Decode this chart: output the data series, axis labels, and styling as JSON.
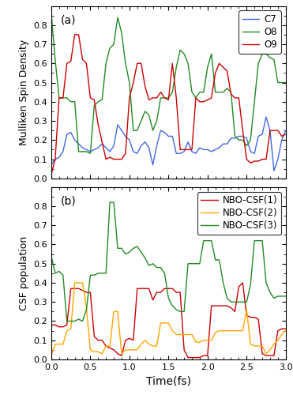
{
  "panel_a": {
    "title": "(a)",
    "ylabel": "Mulliken Spin Density",
    "ylim": [
      0.0,
      0.9
    ],
    "yticks": [
      0.0,
      0.1,
      0.2,
      0.3,
      0.4,
      0.5,
      0.6,
      0.7,
      0.8
    ],
    "C7": {
      "color": "#4169e1",
      "x": [
        0.0,
        0.05,
        0.1,
        0.15,
        0.2,
        0.25,
        0.3,
        0.35,
        0.4,
        0.45,
        0.5,
        0.55,
        0.6,
        0.65,
        0.7,
        0.75,
        0.8,
        0.85,
        0.9,
        0.95,
        1.0,
        1.05,
        1.1,
        1.15,
        1.2,
        1.25,
        1.3,
        1.35,
        1.4,
        1.45,
        1.5,
        1.55,
        1.6,
        1.65,
        1.7,
        1.75,
        1.8,
        1.85,
        1.9,
        1.95,
        2.0,
        2.05,
        2.1,
        2.15,
        2.2,
        2.25,
        2.3,
        2.35,
        2.4,
        2.45,
        2.5,
        2.55,
        2.6,
        2.65,
        2.7,
        2.75,
        2.8,
        2.85,
        2.9,
        2.95,
        3.0
      ],
      "y": [
        0.07,
        0.1,
        0.11,
        0.14,
        0.23,
        0.24,
        0.2,
        0.18,
        0.16,
        0.15,
        0.14,
        0.15,
        0.16,
        0.18,
        0.16,
        0.14,
        0.17,
        0.28,
        0.25,
        0.22,
        0.2,
        0.14,
        0.13,
        0.17,
        0.19,
        0.16,
        0.07,
        0.17,
        0.25,
        0.24,
        0.22,
        0.22,
        0.13,
        0.13,
        0.14,
        0.19,
        0.14,
        0.13,
        0.16,
        0.15,
        0.15,
        0.14,
        0.15,
        0.16,
        0.18,
        0.18,
        0.21,
        0.21,
        0.22,
        0.22,
        0.21,
        0.14,
        0.13,
        0.22,
        0.23,
        0.32,
        0.25,
        0.04,
        0.1,
        0.2,
        0.25
      ]
    },
    "O8": {
      "color": "#228b22",
      "x": [
        0.0,
        0.05,
        0.1,
        0.15,
        0.2,
        0.25,
        0.3,
        0.35,
        0.4,
        0.45,
        0.5,
        0.55,
        0.6,
        0.65,
        0.7,
        0.75,
        0.8,
        0.85,
        0.9,
        0.95,
        1.0,
        1.05,
        1.1,
        1.15,
        1.2,
        1.25,
        1.3,
        1.35,
        1.4,
        1.45,
        1.5,
        1.55,
        1.6,
        1.65,
        1.7,
        1.75,
        1.8,
        1.85,
        1.9,
        1.95,
        2.0,
        2.05,
        2.1,
        2.15,
        2.2,
        2.25,
        2.3,
        2.35,
        2.4,
        2.45,
        2.5,
        2.55,
        2.6,
        2.65,
        2.7,
        2.75,
        2.8,
        2.85,
        2.9,
        2.95,
        3.0
      ],
      "y": [
        0.86,
        0.62,
        0.42,
        0.42,
        0.42,
        0.4,
        0.4,
        0.14,
        0.14,
        0.14,
        0.13,
        0.38,
        0.4,
        0.41,
        0.6,
        0.68,
        0.7,
        0.84,
        0.76,
        0.6,
        0.5,
        0.25,
        0.25,
        0.3,
        0.35,
        0.33,
        0.25,
        0.3,
        0.42,
        0.42,
        0.42,
        0.45,
        0.58,
        0.67,
        0.65,
        0.6,
        0.45,
        0.42,
        0.45,
        0.45,
        0.58,
        0.65,
        0.45,
        0.45,
        0.45,
        0.47,
        0.45,
        0.22,
        0.2,
        0.2,
        0.17,
        0.2,
        0.4,
        0.6,
        0.65,
        0.65,
        0.63,
        0.62,
        0.5,
        0.5,
        0.5
      ]
    },
    "O9": {
      "color": "#cc0000",
      "x": [
        0.0,
        0.05,
        0.1,
        0.15,
        0.2,
        0.25,
        0.3,
        0.35,
        0.4,
        0.45,
        0.5,
        0.55,
        0.6,
        0.65,
        0.7,
        0.75,
        0.8,
        0.85,
        0.9,
        0.95,
        1.0,
        1.05,
        1.1,
        1.15,
        1.2,
        1.25,
        1.3,
        1.35,
        1.4,
        1.45,
        1.5,
        1.55,
        1.6,
        1.65,
        1.7,
        1.75,
        1.8,
        1.85,
        1.9,
        1.95,
        2.0,
        2.05,
        2.1,
        2.15,
        2.2,
        2.25,
        2.3,
        2.35,
        2.4,
        2.45,
        2.5,
        2.55,
        2.6,
        2.65,
        2.7,
        2.75,
        2.8,
        2.85,
        2.9,
        2.95,
        3.0
      ],
      "y": [
        0.02,
        0.1,
        0.42,
        0.42,
        0.6,
        0.61,
        0.75,
        0.75,
        0.62,
        0.6,
        0.42,
        0.41,
        0.28,
        0.19,
        0.1,
        0.11,
        0.1,
        0.1,
        0.1,
        0.13,
        0.42,
        0.5,
        0.6,
        0.6,
        0.48,
        0.41,
        0.42,
        0.42,
        0.45,
        0.42,
        0.41,
        0.6,
        0.42,
        0.15,
        0.15,
        0.15,
        0.15,
        0.42,
        0.4,
        0.4,
        0.41,
        0.42,
        0.55,
        0.6,
        0.58,
        0.56,
        0.44,
        0.42,
        0.42,
        0.25,
        0.1,
        0.08,
        0.09,
        0.09,
        0.1,
        0.1,
        0.25,
        0.25,
        0.25,
        0.22,
        0.23
      ]
    }
  },
  "panel_b": {
    "title": "(b)",
    "ylabel": "CSF population",
    "xlabel": "Time(fs)",
    "ylim": [
      0.0,
      0.9
    ],
    "yticks": [
      0.0,
      0.1,
      0.2,
      0.3,
      0.4,
      0.5,
      0.6,
      0.7,
      0.8
    ],
    "CSF1": {
      "color": "#cc0000",
      "label": "NBO-CSF(1)",
      "x": [
        0.0,
        0.05,
        0.1,
        0.15,
        0.2,
        0.25,
        0.3,
        0.35,
        0.4,
        0.45,
        0.5,
        0.55,
        0.6,
        0.65,
        0.7,
        0.75,
        0.8,
        0.85,
        0.9,
        0.95,
        1.0,
        1.05,
        1.1,
        1.15,
        1.2,
        1.25,
        1.3,
        1.35,
        1.4,
        1.45,
        1.5,
        1.55,
        1.6,
        1.65,
        1.7,
        1.75,
        1.8,
        1.85,
        1.9,
        1.95,
        2.0,
        2.05,
        2.1,
        2.15,
        2.2,
        2.25,
        2.3,
        2.35,
        2.4,
        2.45,
        2.5,
        2.55,
        2.6,
        2.65,
        2.7,
        2.75,
        2.8,
        2.85,
        2.9,
        2.95,
        3.0
      ],
      "y": [
        0.18,
        0.18,
        0.17,
        0.17,
        0.18,
        0.37,
        0.37,
        0.37,
        0.36,
        0.35,
        0.35,
        0.12,
        0.1,
        0.1,
        0.07,
        0.06,
        0.05,
        0.03,
        0.02,
        0.1,
        0.11,
        0.1,
        0.37,
        0.37,
        0.37,
        0.37,
        0.31,
        0.35,
        0.35,
        0.37,
        0.37,
        0.37,
        0.35,
        0.35,
        0.05,
        0.01,
        0.01,
        0.01,
        0.01,
        0.02,
        0.02,
        0.28,
        0.28,
        0.28,
        0.28,
        0.28,
        0.27,
        0.25,
        0.38,
        0.4,
        0.23,
        0.22,
        0.22,
        0.21,
        0.03,
        0.02,
        0.02,
        0.02,
        0.15,
        0.16,
        0.16
      ]
    },
    "CSF2": {
      "color": "#ffa500",
      "label": "NBO-CSF(2)",
      "x": [
        0.0,
        0.05,
        0.1,
        0.15,
        0.2,
        0.25,
        0.3,
        0.35,
        0.4,
        0.45,
        0.5,
        0.55,
        0.6,
        0.65,
        0.7,
        0.75,
        0.8,
        0.85,
        0.9,
        0.95,
        1.0,
        1.05,
        1.1,
        1.15,
        1.2,
        1.25,
        1.3,
        1.35,
        1.4,
        1.45,
        1.5,
        1.55,
        1.6,
        1.65,
        1.7,
        1.75,
        1.8,
        1.85,
        1.9,
        1.95,
        2.0,
        2.05,
        2.1,
        2.15,
        2.2,
        2.25,
        2.3,
        2.35,
        2.4,
        2.45,
        2.5,
        2.55,
        2.6,
        2.65,
        2.7,
        2.75,
        2.8,
        2.85,
        2.9,
        2.95,
        3.0
      ],
      "y": [
        0.02,
        0.08,
        0.08,
        0.08,
        0.15,
        0.16,
        0.4,
        0.4,
        0.4,
        0.27,
        0.05,
        0.04,
        0.04,
        0.03,
        0.07,
        0.07,
        0.25,
        0.25,
        0.03,
        0.05,
        0.05,
        0.05,
        0.05,
        0.08,
        0.1,
        0.08,
        0.07,
        0.07,
        0.19,
        0.19,
        0.19,
        0.15,
        0.13,
        0.13,
        0.13,
        0.13,
        0.13,
        0.09,
        0.09,
        0.1,
        0.1,
        0.1,
        0.14,
        0.15,
        0.15,
        0.15,
        0.15,
        0.15,
        0.15,
        0.15,
        0.26,
        0.08,
        0.07,
        0.07,
        0.07,
        0.03,
        0.05,
        0.08,
        0.1,
        0.13,
        0.15
      ]
    },
    "CSF3": {
      "color": "#228b22",
      "label": "NBO-CSF(3)",
      "x": [
        0.0,
        0.05,
        0.1,
        0.15,
        0.2,
        0.25,
        0.3,
        0.35,
        0.4,
        0.45,
        0.5,
        0.55,
        0.6,
        0.65,
        0.7,
        0.75,
        0.8,
        0.85,
        0.9,
        0.95,
        1.0,
        1.05,
        1.1,
        1.15,
        1.2,
        1.25,
        1.3,
        1.35,
        1.4,
        1.45,
        1.5,
        1.55,
        1.6,
        1.65,
        1.7,
        1.75,
        1.8,
        1.85,
        1.9,
        1.95,
        2.0,
        2.05,
        2.1,
        2.15,
        2.2,
        2.25,
        2.3,
        2.35,
        2.4,
        2.45,
        2.5,
        2.55,
        2.6,
        2.65,
        2.7,
        2.75,
        2.8,
        2.85,
        2.9,
        2.95,
        3.0
      ],
      "y": [
        0.54,
        0.45,
        0.46,
        0.44,
        0.2,
        0.2,
        0.2,
        0.21,
        0.2,
        0.26,
        0.44,
        0.44,
        0.45,
        0.45,
        0.45,
        0.82,
        0.82,
        0.58,
        0.58,
        0.55,
        0.56,
        0.58,
        0.59,
        0.56,
        0.53,
        0.49,
        0.5,
        0.48,
        0.48,
        0.45,
        0.32,
        0.28,
        0.26,
        0.25,
        0.25,
        0.5,
        0.5,
        0.5,
        0.5,
        0.62,
        0.62,
        0.62,
        0.52,
        0.52,
        0.4,
        0.32,
        0.3,
        0.3,
        0.3,
        0.3,
        0.3,
        0.39,
        0.62,
        0.62,
        0.62,
        0.4,
        0.35,
        0.32,
        0.33,
        0.33,
        0.33
      ]
    }
  },
  "xlim": [
    0.0,
    3.0
  ],
  "xticks": [
    0.0,
    0.5,
    1.0,
    1.5,
    2.0,
    2.5,
    3.0
  ],
  "background_color": "#ffffff"
}
